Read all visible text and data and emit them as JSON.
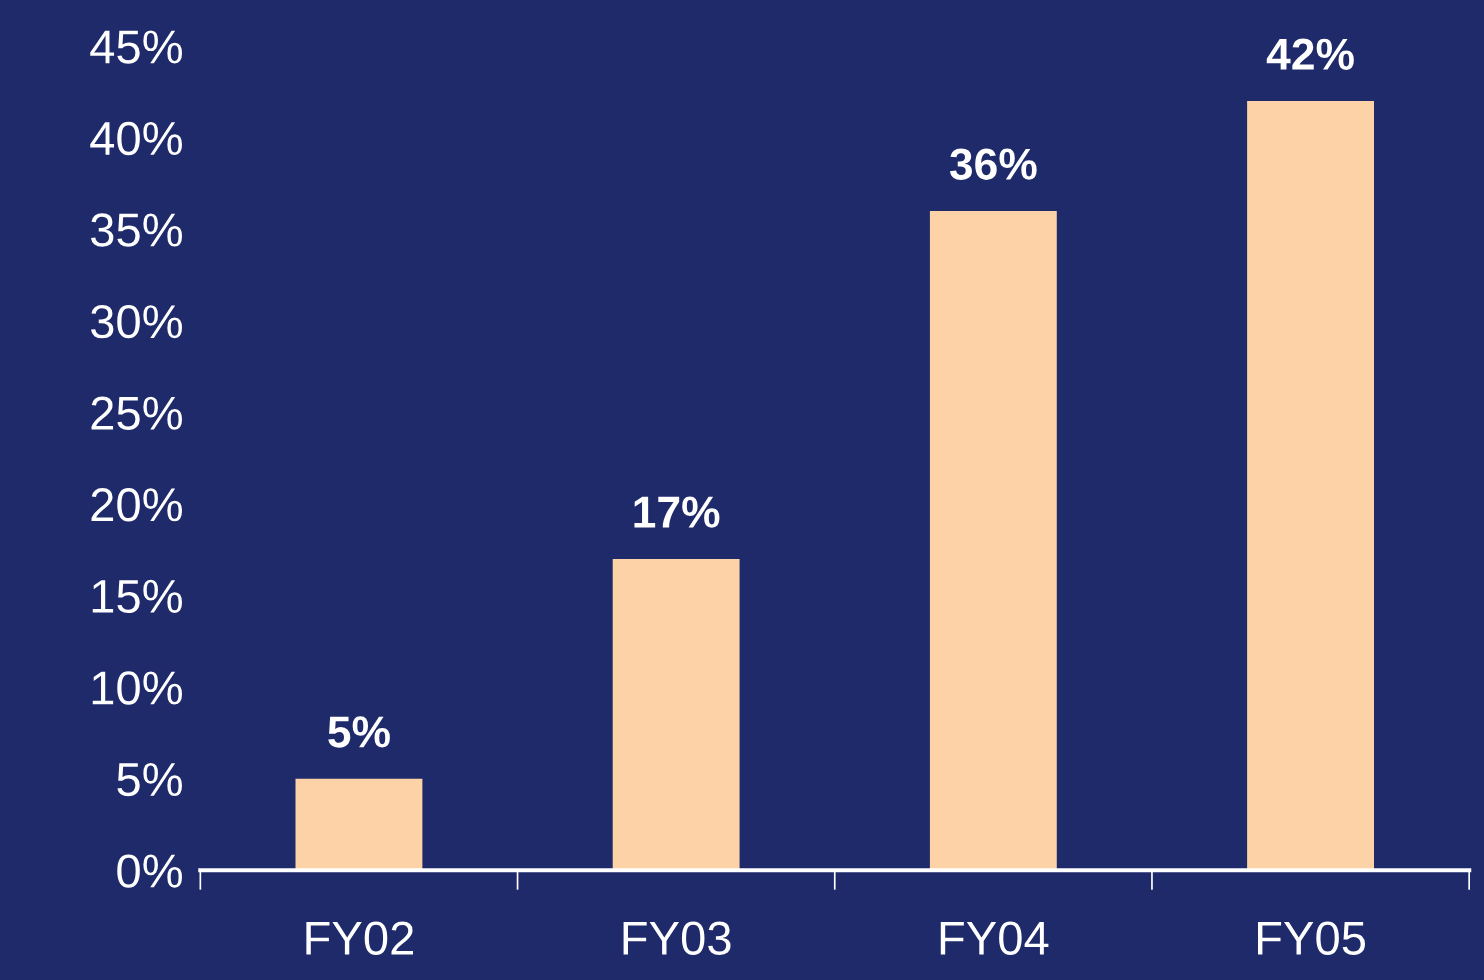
{
  "chart_data": {
    "type": "bar",
    "categories": [
      "FY02",
      "FY03",
      "FY04",
      "FY05"
    ],
    "values": [
      5,
      17,
      36,
      42
    ],
    "value_labels": [
      "5%",
      "17%",
      "36%",
      "42%"
    ],
    "color": "#fcd2a6",
    "ylim": [
      0,
      45
    ],
    "yticks": [
      {
        "value": 0,
        "label": "0%"
      },
      {
        "value": 5,
        "label": "5%"
      },
      {
        "value": 10,
        "label": "10%"
      },
      {
        "value": 15,
        "label": "15%"
      },
      {
        "value": 20,
        "label": "20%"
      },
      {
        "value": 25,
        "label": "25%"
      },
      {
        "value": 30,
        "label": "30%"
      },
      {
        "value": 35,
        "label": "35%"
      },
      {
        "value": 40,
        "label": "40%"
      },
      {
        "value": 45,
        "label": "45%"
      }
    ],
    "grid": false,
    "legend": false
  }
}
